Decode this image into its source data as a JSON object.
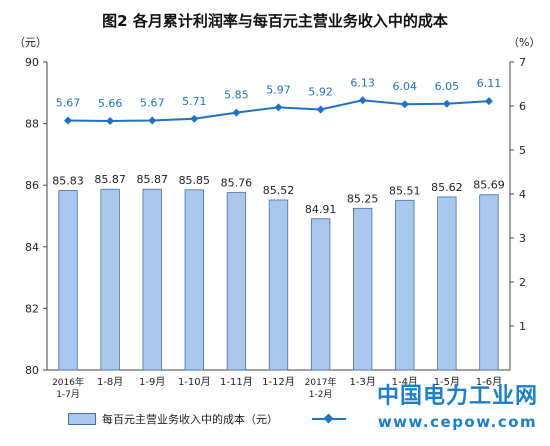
{
  "title": "图2  各月累计利润率与每百元主营业务收入中的成本",
  "left_unit": "（元）",
  "right_unit": "（%）",
  "legend": {
    "bar_label": "每百元主营业务收入中的成本（元）"
  },
  "watermark": {
    "cn": "中国电力工业网",
    "en": "www.cepow.com"
  },
  "colors": {
    "bar_fill": "#a9c8ec",
    "bar_stroke": "#4a6f9e",
    "line": "#1f72c4",
    "watermark": "#1f7fc6"
  },
  "chart_data": {
    "type": "bar",
    "categories": [
      [
        "2016年",
        "1-7月"
      ],
      [
        "1-8月"
      ],
      [
        "1-9月"
      ],
      [
        "1-10月"
      ],
      [
        "1-11月"
      ],
      [
        "1-12月"
      ],
      [
        "2017年",
        "1-2月"
      ],
      [
        "1-3月"
      ],
      [
        "1-4月"
      ],
      [
        "1-5月"
      ],
      [
        "1-6月"
      ]
    ],
    "bars": {
      "values": [
        85.83,
        85.87,
        85.87,
        85.85,
        85.76,
        85.52,
        84.91,
        85.25,
        85.51,
        85.62,
        85.69
      ],
      "labels": [
        "85.83",
        "85.87",
        "85.87",
        "85.85",
        "85.76",
        "85.52",
        "84.91",
        "85.25",
        "85.51",
        "85.62",
        "85.69"
      ],
      "axis": "left"
    },
    "line": {
      "values": [
        5.67,
        5.66,
        5.67,
        5.71,
        5.85,
        5.97,
        5.92,
        6.13,
        6.04,
        6.05,
        6.11
      ],
      "labels": [
        "5.67",
        "5.66",
        "5.67",
        "5.71",
        "5.85",
        "5.97",
        "5.92",
        "6.13",
        "6.04",
        "6.05",
        "6.11"
      ],
      "axis": "right"
    },
    "left_axis": {
      "min": 80,
      "max": 90,
      "ticks": [
        "80",
        "82",
        "84",
        "86",
        "88",
        "90"
      ]
    },
    "right_axis": {
      "min": 0,
      "max": 7,
      "ticks": [
        "1",
        "2",
        "3",
        "4",
        "5",
        "6",
        "7"
      ]
    },
    "grid": false,
    "legend_position": "bottom"
  }
}
